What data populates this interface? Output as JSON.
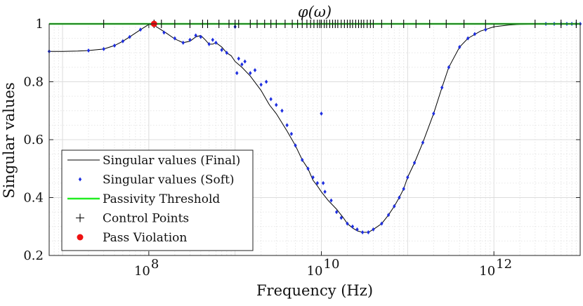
{
  "chart_data": {
    "type": "line",
    "title": "φ(ω)",
    "xlabel": "Frequency (Hz)",
    "ylabel": "Singular values",
    "xscale": "log",
    "xlim": [
      7000000.0,
      10000000000000.0
    ],
    "ylim": [
      0.2,
      1.0
    ],
    "grid": true,
    "minor_grid": true,
    "legend_position": "bottom-left",
    "x_ticks": [
      {
        "value": 100000000.0,
        "base": "10",
        "exp": "8"
      },
      {
        "value": 10000000000.0,
        "base": "10",
        "exp": "10"
      },
      {
        "value": 1000000000000.0,
        "base": "10",
        "exp": "12"
      }
    ],
    "y_ticks": [
      {
        "value": 0.2,
        "label": "0.2"
      },
      {
        "value": 0.4,
        "label": "0.4"
      },
      {
        "value": 0.6,
        "label": "0.6"
      },
      {
        "value": 0.8,
        "label": "0.8"
      },
      {
        "value": 1.0,
        "label": "1"
      }
    ],
    "series": [
      {
        "name": "Singular values (Final)",
        "style": "line",
        "color": "#000000",
        "x": [
          7000000.0,
          10000000.0,
          15000000.0,
          20000000.0,
          30000000.0,
          40000000.0,
          50000000.0,
          60000000.0,
          80000000.0,
          100000000.0,
          115000000.0,
          130000000.0,
          160000000.0,
          200000000.0,
          250000000.0,
          300000000.0,
          350000000.0,
          400000000.0,
          450000000.0,
          500000000.0,
          550000000.0,
          600000000.0,
          700000000.0,
          800000000.0,
          900000000.0,
          1000000000.0,
          1200000000.0,
          1500000000.0,
          2000000000.0,
          2500000000.0,
          3000000000.0,
          4000000000.0,
          5000000000.0,
          6000000000.0,
          7000000000.0,
          8000000000.0,
          9000000000.0,
          10000000000.0,
          12000000000.0,
          15000000000.0,
          18000000000.0,
          20000000000.0,
          23000000000.0,
          26000000000.0,
          30000000000.0,
          35000000000.0,
          40000000000.0,
          50000000000.0,
          60000000000.0,
          70000000000.0,
          80000000000.0,
          90000000000.0,
          100000000000.0,
          120000000000.0,
          150000000000.0,
          200000000000.0,
          250000000000.0,
          300000000000.0,
          400000000000.0,
          500000000000.0,
          700000000000.0,
          1000000000000.0,
          1500000000000.0,
          2000000000000.0,
          3000000000000.0,
          5000000000000.0,
          10000000000000.0
        ],
        "y": [
          0.905,
          0.905,
          0.906,
          0.908,
          0.913,
          0.925,
          0.94,
          0.955,
          0.98,
          0.998,
          0.995,
          0.985,
          0.968,
          0.948,
          0.935,
          0.94,
          0.955,
          0.96,
          0.945,
          0.93,
          0.93,
          0.935,
          0.92,
          0.9,
          0.89,
          0.87,
          0.85,
          0.82,
          0.77,
          0.72,
          0.69,
          0.63,
          0.58,
          0.53,
          0.5,
          0.46,
          0.44,
          0.42,
          0.39,
          0.36,
          0.33,
          0.31,
          0.295,
          0.285,
          0.28,
          0.28,
          0.29,
          0.31,
          0.34,
          0.37,
          0.4,
          0.43,
          0.47,
          0.52,
          0.59,
          0.69,
          0.78,
          0.85,
          0.92,
          0.95,
          0.975,
          0.99,
          0.996,
          0.998,
          0.999,
          1.0,
          1.0
        ]
      },
      {
        "name": "Singular values (Soft)",
        "style": "markers",
        "color": "#1f2fe0",
        "x": [
          7000000.0,
          20000000.0,
          30000000.0,
          40000000.0,
          50000000.0,
          60000000.0,
          80000000.0,
          120000000.0,
          150000000.0,
          200000000.0,
          250000000.0,
          300000000.0,
          350000000.0,
          400000000.0,
          500000000.0,
          550000000.0,
          600000000.0,
          700000000.0,
          800000000.0,
          1000000000.0,
          1050000000.0,
          1100000000.0,
          1200000000.0,
          1300000000.0,
          1500000000.0,
          1700000000.0,
          2000000000.0,
          2300000000.0,
          2600000000.0,
          3000000000.0,
          3500000000.0,
          4000000000.0,
          4500000000.0,
          5000000000.0,
          6000000000.0,
          7000000000.0,
          8000000000.0,
          9000000000.0,
          10000000000.0,
          10500000000.0,
          11000000000.0,
          13000000000.0,
          15000000000.0,
          17000000000.0,
          20000000000.0,
          23000000000.0,
          26000000000.0,
          30000000000.0,
          35000000000.0,
          40000000000.0,
          50000000000.0,
          60000000000.0,
          70000000000.0,
          80000000000.0,
          90000000000.0,
          100000000000.0,
          120000000000.0,
          150000000000.0,
          200000000000.0,
          250000000000.0,
          300000000000.0,
          400000000000.0,
          500000000000.0,
          600000000000.0,
          800000000000.0,
          4000000000000.0,
          5000000000000.0,
          6000000000000.0,
          7000000000000.0,
          8000000000000.0,
          9000000000000.0,
          10000000000000.0
        ],
        "y": [
          0.905,
          0.908,
          0.913,
          0.925,
          0.94,
          0.955,
          0.98,
          0.998,
          0.97,
          0.95,
          0.935,
          0.945,
          0.96,
          0.955,
          0.93,
          0.945,
          0.935,
          0.91,
          0.9,
          0.99,
          0.83,
          0.88,
          0.86,
          0.87,
          0.83,
          0.84,
          0.79,
          0.8,
          0.74,
          0.72,
          0.7,
          0.65,
          0.62,
          0.58,
          0.53,
          0.5,
          0.47,
          0.45,
          0.69,
          0.45,
          0.42,
          0.39,
          0.35,
          0.33,
          0.31,
          0.3,
          0.29,
          0.28,
          0.28,
          0.29,
          0.31,
          0.34,
          0.37,
          0.4,
          0.43,
          0.47,
          0.52,
          0.59,
          0.69,
          0.78,
          0.85,
          0.92,
          0.95,
          0.965,
          0.98,
          1.0,
          1.0,
          1.0,
          1.0,
          1.0,
          1.0,
          1.0
        ]
      },
      {
        "name": "Passivity Threshold",
        "style": "line",
        "color": "#22ee22",
        "x": [
          7000000.0,
          10000000000000.0
        ],
        "y": [
          1.0,
          1.0
        ]
      },
      {
        "name": "Control Points",
        "style": "plus",
        "color": "#000000",
        "x": [
          30000000.0,
          115000000.0,
          140000000.0,
          200000000.0,
          300000000.0,
          420000000.0,
          480000000.0,
          650000000.0,
          850000000.0,
          1000000000.0,
          1100000000.0,
          1500000000.0,
          1800000000.0,
          2200000000.0,
          2600000000.0,
          3000000000.0,
          3800000000.0,
          4600000000.0,
          5300000000.0,
          6000000000.0,
          6800000000.0,
          7500000000.0,
          8200000000.0,
          9000000000.0,
          9600000000.0,
          10000000000.0,
          10800000000.0,
          11500000000.0,
          12500000000.0,
          13500000000.0,
          14500000000.0,
          15500000000.0,
          17000000000.0,
          18500000000.0,
          20000000000.0,
          21500000000.0,
          23000000000.0,
          25000000000.0,
          27000000000.0,
          29000000000.0,
          31000000000.0,
          34000000000.0,
          37000000000.0,
          40000000000.0,
          50000000000.0,
          65000000000.0,
          90000000000.0,
          125000000000.0,
          180000000000.0,
          280000000000.0,
          450000000000.0,
          800000000000.0,
          3000000000000.0,
          6000000000000.0,
          9000000000000.0
        ],
        "y": [
          1.0,
          1.0,
          1.0,
          1.0,
          1.0,
          1.0,
          1.0,
          1.0,
          1.0,
          1.0,
          1.0,
          1.0,
          1.0,
          1.0,
          1.0,
          1.0,
          1.0,
          1.0,
          1.0,
          1.0,
          1.0,
          1.0,
          1.0,
          1.0,
          1.0,
          1.0,
          1.0,
          1.0,
          1.0,
          1.0,
          1.0,
          1.0,
          1.0,
          1.0,
          1.0,
          1.0,
          1.0,
          1.0,
          1.0,
          1.0,
          1.0,
          1.0,
          1.0,
          1.0,
          1.0,
          1.0,
          1.0,
          1.0,
          1.0,
          1.0,
          1.0,
          1.0,
          1.0,
          1.0,
          1.0
        ]
      },
      {
        "name": "Pass Violation",
        "style": "dot",
        "color": "#ee1111",
        "x": [
          115000000.0
        ],
        "y": [
          1.0
        ]
      }
    ]
  }
}
